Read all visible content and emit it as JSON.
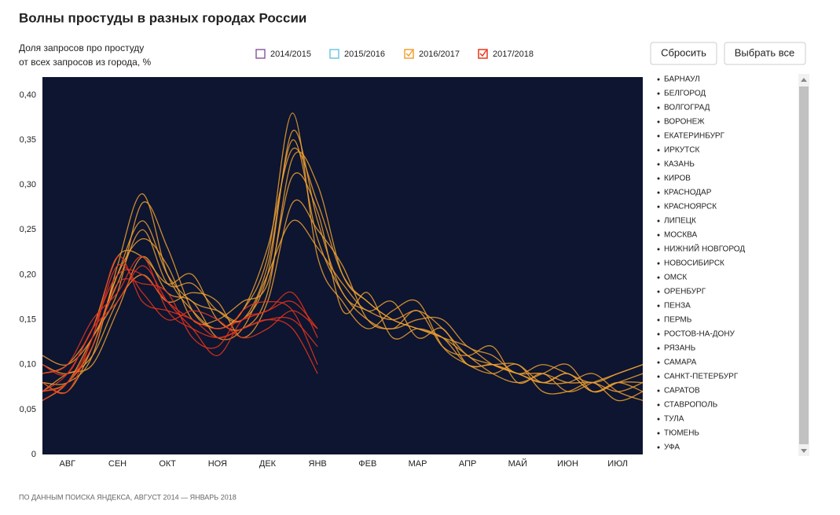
{
  "chart_data": {
    "type": "line",
    "title": "Волны простуды в разных городах России",
    "y_label_lines": [
      "Доля запросов про простуду",
      "от всех запросов из города, %"
    ],
    "buttons": [
      "Сбросить",
      "Выбрать все"
    ],
    "source": "ПО ДАННЫМ ПОИСКА ЯНДЕКСА, АВГУСТ 2014 — ЯНВАРЬ 2018",
    "categories": [
      "АВГ",
      "СЕН",
      "ОКТ",
      "НОЯ",
      "ДЕК",
      "ЯНВ",
      "ФЕВ",
      "МАР",
      "АПР",
      "МАЙ",
      "ИЮН",
      "ИЮЛ"
    ],
    "xlim": [
      0,
      12
    ],
    "x": [
      0,
      0.5,
      1,
      1.5,
      2,
      2.5,
      3,
      3.5,
      4,
      4.5,
      5,
      5.5,
      6,
      6.5,
      7,
      7.5,
      8,
      8.5,
      9,
      9.5,
      10,
      10.5,
      11,
      11.5,
      12
    ],
    "ylim": [
      0,
      0.42
    ],
    "yticks": [
      0,
      {
        "value": 0.05,
        "label": "0,05"
      },
      {
        "value": 0.1,
        "label": "0,10"
      },
      {
        "value": 0.15,
        "label": "0,15"
      },
      {
        "value": 0.2,
        "label": "0,20"
      },
      {
        "value": 0.25,
        "label": "0,25"
      },
      {
        "value": 0.3,
        "label": "0,30"
      },
      {
        "value": 0.35,
        "label": "0,35"
      },
      {
        "value": 0.4,
        "label": "0,40"
      }
    ],
    "cities": [
      "БАРНАУЛ",
      "БЕЛГОРОД",
      "ВОЛГОГРАД",
      "ВОРОНЕЖ",
      "ЕКАТЕРИНБУРГ",
      "ИРКУТСК",
      "КАЗАНЬ",
      "КИРОВ",
      "КРАСНОДАР",
      "КРАСНОЯРСК",
      "ЛИПЕЦК",
      "МОСКВА",
      "НИЖНИЙ НОВГОРОД",
      "НОВОСИБИРСК",
      "ОМСК",
      "ОРЕНБУРГ",
      "ПЕНЗА",
      "ПЕРМЬ",
      "РОСТОВ-НА-ДОНУ",
      "РЯЗАНЬ",
      "САМАРА",
      "САНКТ-ПЕТЕРБУРГ",
      "САРАТОВ",
      "СТАВРОПОЛЬ",
      "ТУЛА",
      "ТЮМЕНЬ",
      "УФА"
    ],
    "series": [
      {
        "name": "2014/2015",
        "color": "#8e5ea2",
        "checked": false,
        "lines": []
      },
      {
        "name": "2015/2016",
        "color": "#6ec6e6",
        "checked": false,
        "lines": []
      },
      {
        "name": "2016/2017",
        "color": "#f0a030",
        "checked": true,
        "lines": [
          [
            0.07,
            0.08,
            0.12,
            0.2,
            0.26,
            0.2,
            0.17,
            0.16,
            0.15,
            0.2,
            0.36,
            0.26,
            0.18,
            0.16,
            0.15,
            0.16,
            0.14,
            0.11,
            0.1,
            0.09,
            0.09,
            0.08,
            0.08,
            0.07,
            0.08
          ],
          [
            0.09,
            0.1,
            0.14,
            0.22,
            0.22,
            0.19,
            0.2,
            0.15,
            0.14,
            0.18,
            0.33,
            0.3,
            0.2,
            0.17,
            0.15,
            0.14,
            0.13,
            0.1,
            0.1,
            0.1,
            0.08,
            0.09,
            0.07,
            0.08,
            0.09
          ],
          [
            0.06,
            0.08,
            0.13,
            0.18,
            0.28,
            0.23,
            0.16,
            0.14,
            0.16,
            0.22,
            0.38,
            0.22,
            0.17,
            0.14,
            0.16,
            0.17,
            0.12,
            0.1,
            0.09,
            0.1,
            0.07,
            0.07,
            0.08,
            0.06,
            0.07
          ],
          [
            0.1,
            0.09,
            0.11,
            0.17,
            0.2,
            0.17,
            0.18,
            0.17,
            0.13,
            0.17,
            0.28,
            0.25,
            0.21,
            0.15,
            0.14,
            0.15,
            0.15,
            0.12,
            0.11,
            0.09,
            0.1,
            0.09,
            0.08,
            0.09,
            0.1
          ],
          [
            0.08,
            0.07,
            0.12,
            0.2,
            0.24,
            0.21,
            0.15,
            0.15,
            0.17,
            0.19,
            0.31,
            0.27,
            0.16,
            0.18,
            0.13,
            0.14,
            0.13,
            0.11,
            0.09,
            0.08,
            0.09,
            0.1,
            0.07,
            0.08,
            0.08
          ],
          [
            0.07,
            0.09,
            0.1,
            0.16,
            0.22,
            0.18,
            0.17,
            0.13,
            0.14,
            0.2,
            0.26,
            0.23,
            0.19,
            0.16,
            0.17,
            0.13,
            0.14,
            0.1,
            0.1,
            0.09,
            0.08,
            0.08,
            0.09,
            0.07,
            0.06
          ],
          [
            0.11,
            0.1,
            0.13,
            0.19,
            0.25,
            0.19,
            0.19,
            0.16,
            0.15,
            0.21,
            0.35,
            0.24,
            0.18,
            0.15,
            0.14,
            0.16,
            0.12,
            0.11,
            0.12,
            0.08,
            0.09,
            0.07,
            0.08,
            0.09,
            0.1
          ],
          [
            0.08,
            0.08,
            0.11,
            0.21,
            0.29,
            0.2,
            0.16,
            0.14,
            0.16,
            0.23,
            0.34,
            0.28,
            0.2,
            0.17,
            0.15,
            0.14,
            0.13,
            0.12,
            0.1,
            0.09,
            0.08,
            0.09,
            0.07,
            0.08,
            0.07
          ]
        ]
      },
      {
        "name": "2017/2018",
        "color": "#e8341c",
        "checked": true,
        "lines": [
          [
            0.07,
            0.09,
            0.14,
            0.2,
            0.2,
            0.17,
            0.15,
            0.14,
            0.15,
            0.16,
            0.17,
            0.14,
            null,
            null,
            null,
            null,
            null,
            null,
            null,
            null,
            null,
            null,
            null,
            null,
            null
          ],
          [
            0.09,
            0.1,
            0.15,
            0.18,
            0.22,
            0.16,
            0.14,
            0.13,
            0.14,
            0.15,
            0.15,
            0.12,
            null,
            null,
            null,
            null,
            null,
            null,
            null,
            null,
            null,
            null,
            null,
            null,
            null
          ],
          [
            0.06,
            0.08,
            0.12,
            0.19,
            0.19,
            0.18,
            0.13,
            0.12,
            0.16,
            0.17,
            0.16,
            0.1,
            null,
            null,
            null,
            null,
            null,
            null,
            null,
            null,
            null,
            null,
            null,
            null,
            null
          ],
          [
            0.08,
            0.07,
            0.13,
            0.21,
            0.18,
            0.15,
            0.16,
            0.15,
            0.13,
            0.14,
            0.16,
            0.14,
            null,
            null,
            null,
            null,
            null,
            null,
            null,
            null,
            null,
            null,
            null,
            null,
            null
          ],
          [
            0.1,
            0.09,
            0.14,
            0.17,
            0.21,
            0.17,
            0.14,
            0.11,
            0.15,
            0.16,
            0.18,
            0.13,
            null,
            null,
            null,
            null,
            null,
            null,
            null,
            null,
            null,
            null,
            null,
            null,
            null
          ],
          [
            0.07,
            0.08,
            0.13,
            0.22,
            0.17,
            0.16,
            0.15,
            0.13,
            0.14,
            0.15,
            0.14,
            0.09,
            null,
            null,
            null,
            null,
            null,
            null,
            null,
            null,
            null,
            null,
            null,
            null,
            null
          ]
        ]
      }
    ]
  }
}
